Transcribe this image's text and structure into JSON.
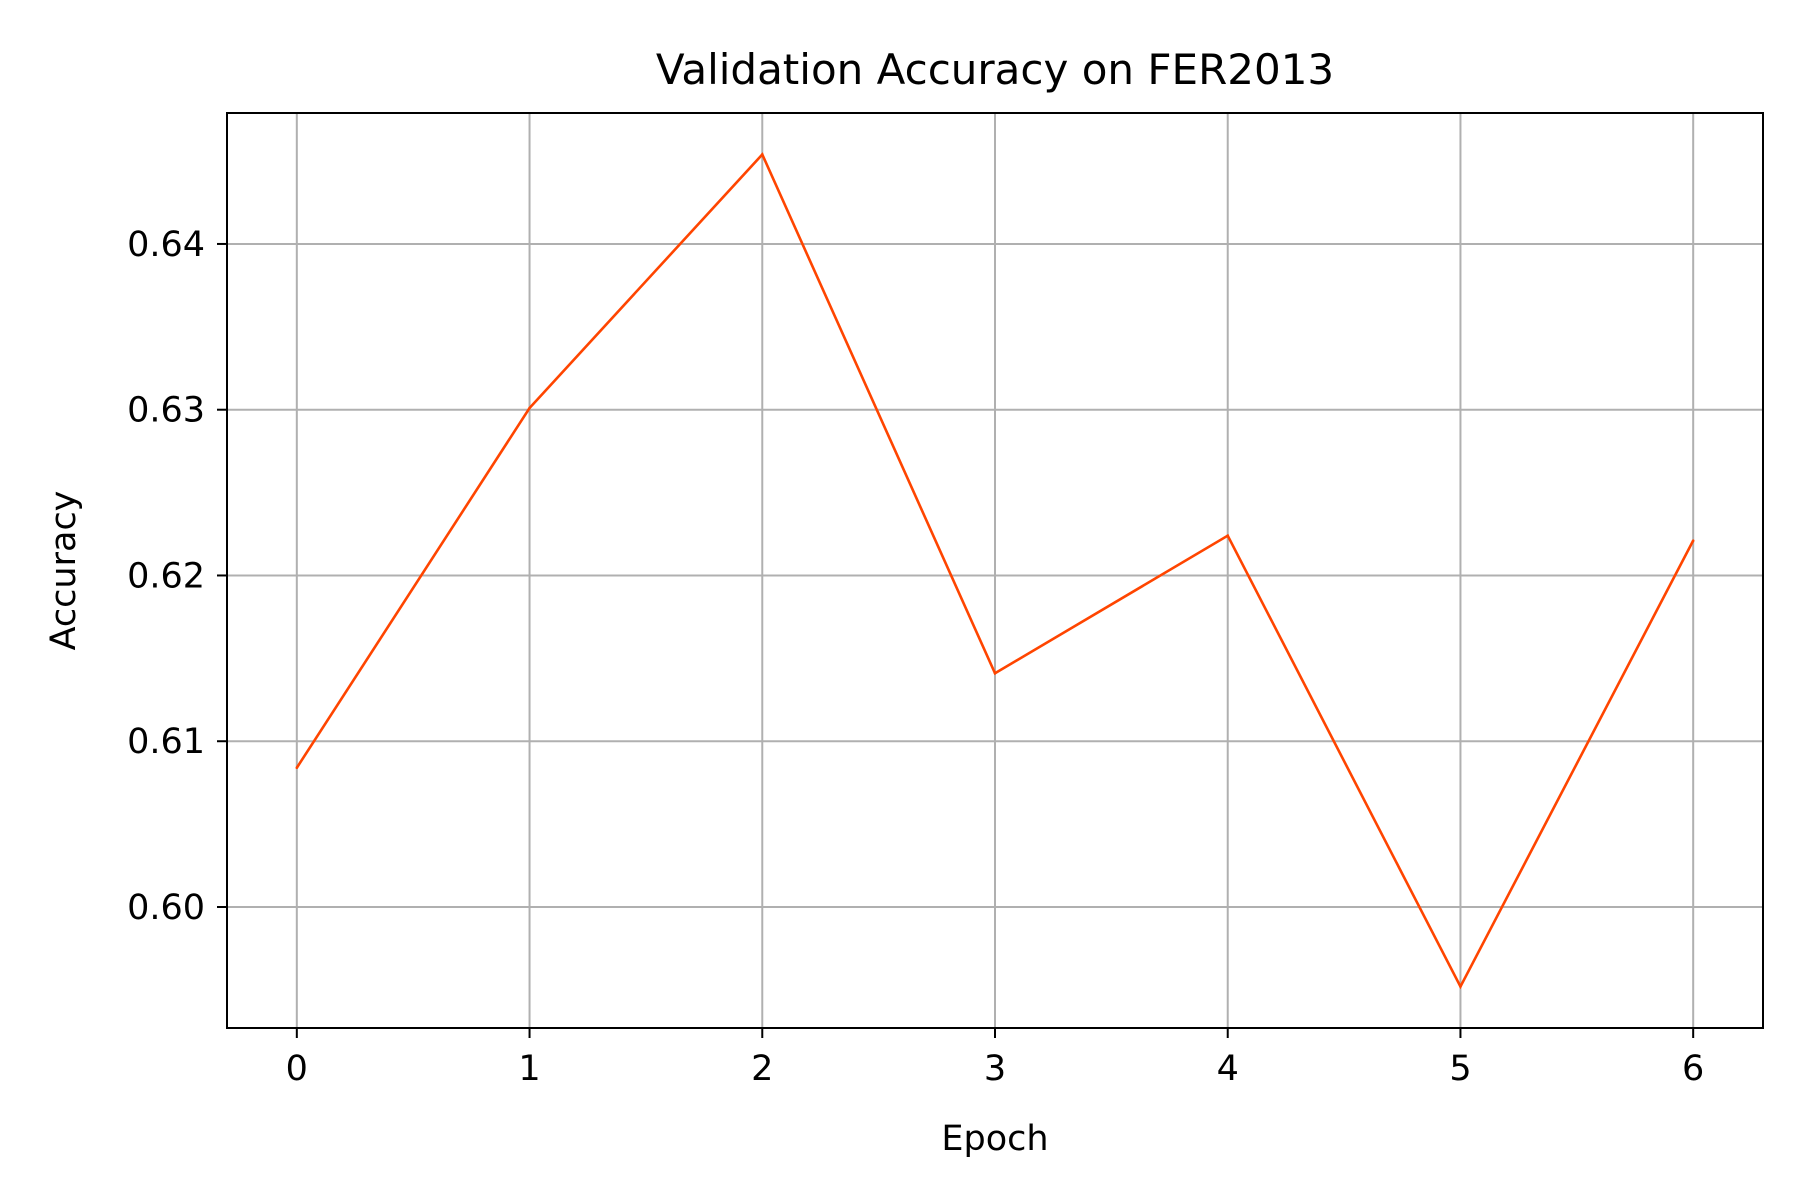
{
  "chart_data": {
    "type": "line",
    "title": "Validation Accuracy on FER2013",
    "xlabel": "Epoch",
    "ylabel": "Accuracy",
    "x": [
      0,
      1,
      2,
      3,
      4,
      5,
      6
    ],
    "series": [
      {
        "values": [
          0.6084,
          0.6301,
          0.6454,
          0.6141,
          0.6224,
          0.5952,
          0.6221
        ],
        "color": "#ff4500"
      }
    ],
    "xticks": [
      "0",
      "1",
      "2",
      "3",
      "4",
      "5",
      "6"
    ],
    "yticks": [
      "0.60",
      "0.61",
      "0.62",
      "0.63",
      "0.64"
    ],
    "xlim": [
      -0.3,
      6.3
    ],
    "ylim": [
      0.5927,
      0.6479
    ],
    "grid": true,
    "grid_color": "#b0b0b0",
    "axis_color": "#000000"
  }
}
